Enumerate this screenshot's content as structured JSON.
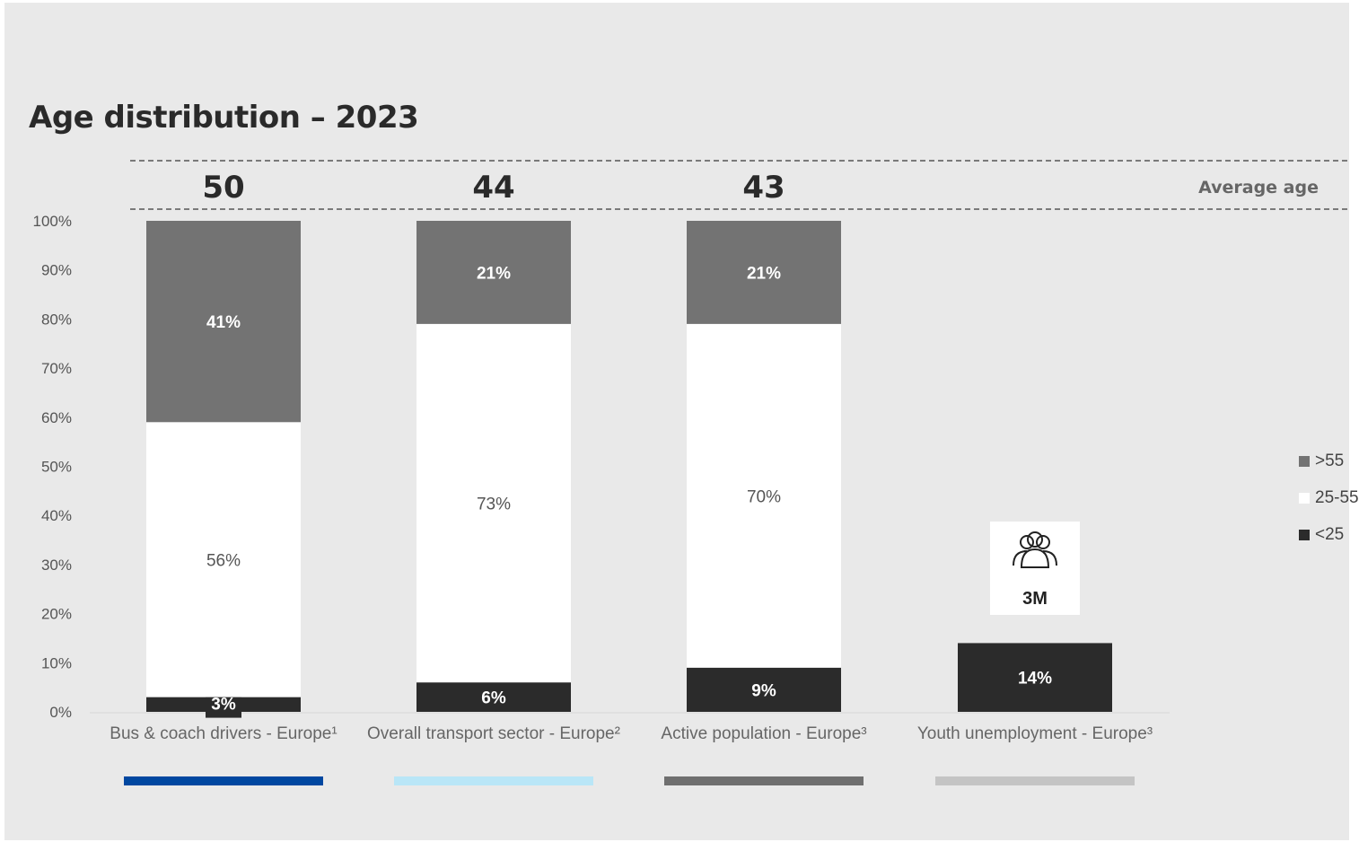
{
  "chart_data": {
    "type": "bar",
    "title": "Age distribution – 2023",
    "stacked": true,
    "categories": [
      "Bus & coach drivers - Europe¹",
      "Overall transport sector - Europe²",
      "Active population - Europe³",
      "Youth unemployment - Europe³"
    ],
    "series": [
      {
        "name": "<25",
        "color": "#2b2b2b",
        "values": [
          3,
          6,
          9,
          14
        ]
      },
      {
        "name": "25-55",
        "color": "#ffffff",
        "values": [
          56,
          73,
          70,
          null
        ]
      },
      {
        "name": ">55",
        "color": "#737373",
        "values": [
          41,
          21,
          21,
          null
        ]
      }
    ],
    "data_labels": [
      [
        "3%",
        "56%",
        "41%"
      ],
      [
        "6%",
        "73%",
        "21%"
      ],
      [
        "9%",
        "70%",
        "21%"
      ],
      [
        "14%",
        "",
        ""
      ]
    ],
    "average_age_label": "Average age",
    "average_ages": [
      "50",
      "44",
      "43",
      ""
    ],
    "yticks": [
      "0%",
      "10%",
      "20%",
      "30%",
      "40%",
      "50%",
      "60%",
      "70%",
      "80%",
      "90%",
      "100%"
    ],
    "ylim": [
      0,
      100
    ],
    "category_underline_colors": [
      "#0047a0",
      "#b9e6f7",
      "#6f6f6f",
      "#c4c4c4"
    ],
    "callout": {
      "icon": "people-group-icon",
      "value": "3M"
    },
    "legend_position": "right",
    "grid": false
  }
}
